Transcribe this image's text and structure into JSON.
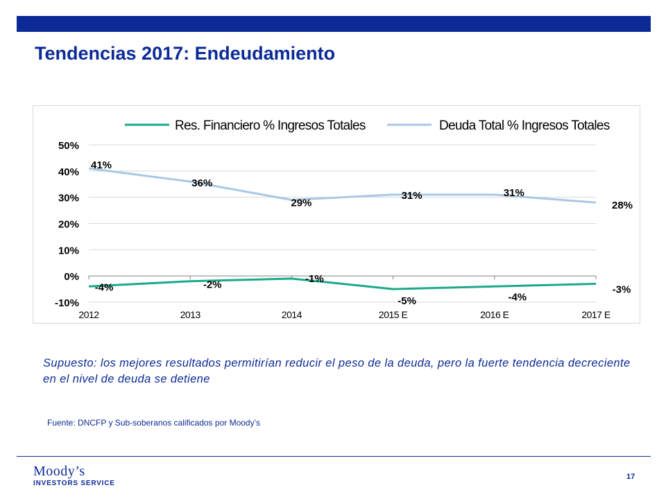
{
  "header": {
    "title": "Tendencias 2017: Endeudamiento",
    "bar_color": "#0b2a96"
  },
  "chart_data": {
    "type": "line",
    "categories": [
      "2012",
      "2013",
      "2014",
      "2015 E",
      "2016 E",
      "2017 E"
    ],
    "series": [
      {
        "name": "Res. Financiero % Ingresos Totales",
        "color": "#1aa98a",
        "values": [
          -4,
          -2,
          -1,
          -5,
          -4,
          -3
        ],
        "labels": [
          "-4%",
          "-2%",
          "-1%",
          "-5%",
          "-4%",
          "-3%"
        ]
      },
      {
        "name": "Deuda Total % Ingresos Totales",
        "color": "#a8c8e6",
        "values": [
          41,
          36,
          29,
          31,
          31,
          28
        ],
        "labels": [
          "41%",
          "36%",
          "29%",
          "31%",
          "31%",
          "28%"
        ]
      }
    ],
    "yticks": [
      "50%",
      "40%",
      "30%",
      "20%",
      "10%",
      "0%",
      "-10%"
    ],
    "ylim": [
      -10,
      50
    ],
    "grid": true,
    "legend": "top"
  },
  "notes": {
    "assumption": "Supuesto: los mejores resultados permitirían reducir el peso de la deuda, pero la fuerte tendencia decreciente en el nivel de deuda se detiene",
    "source": "Fuente: DNCFP  y Sub-soberanos calificados por Moody’s"
  },
  "footer": {
    "logo_main": "Moody’s",
    "logo_sub": "INVESTORS SERVICE",
    "page_number": "17"
  }
}
